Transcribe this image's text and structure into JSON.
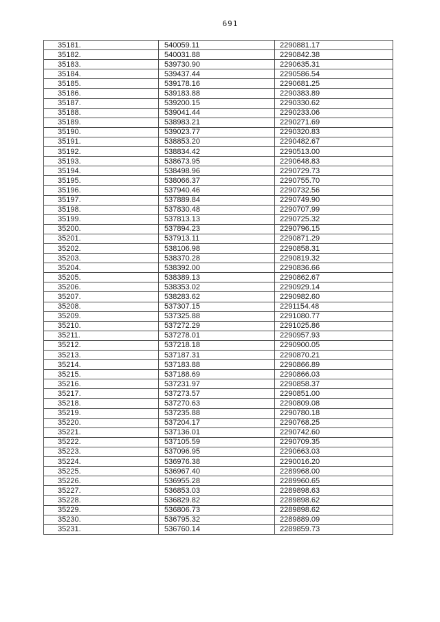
{
  "page": {
    "number": "691"
  },
  "table": {
    "rows": [
      [
        "35181.",
        "540059.11",
        "2290881.17"
      ],
      [
        "35182.",
        "540031.88",
        "2290842.38"
      ],
      [
        "35183.",
        "539730.90",
        "2290635.31"
      ],
      [
        "35184.",
        "539437.44",
        "2290586.54"
      ],
      [
        "35185.",
        "539178.16",
        "2290681.25"
      ],
      [
        "35186.",
        "539183.88",
        "2290383.89"
      ],
      [
        "35187.",
        "539200.15",
        "2290330.62"
      ],
      [
        "35188.",
        "539041.44",
        "2290233.06"
      ],
      [
        "35189.",
        "538983.21",
        "2290271.69"
      ],
      [
        "35190.",
        "539023.77",
        "2290320.83"
      ],
      [
        "35191.",
        "538853.20",
        "2290482.67"
      ],
      [
        "35192.",
        "538834.42",
        "2290513.00"
      ],
      [
        "35193.",
        "538673.95",
        "2290648.83"
      ],
      [
        "35194.",
        "538498.96",
        "2290729.73"
      ],
      [
        "35195.",
        "538066.37",
        "2290755.70"
      ],
      [
        "35196.",
        "537940.46",
        "2290732.56"
      ],
      [
        "35197.",
        "537889.84",
        "2290749.90"
      ],
      [
        "35198.",
        "537830.48",
        "2290707.99"
      ],
      [
        "35199.",
        "537813.13",
        "2290725.32"
      ],
      [
        "35200.",
        "537894.23",
        "2290796.15"
      ],
      [
        "35201.",
        "537913.11",
        "2290871.29"
      ],
      [
        "35202.",
        "538106.98",
        "2290858.31"
      ],
      [
        "35203.",
        "538370.28",
        "2290819.32"
      ],
      [
        "35204.",
        "538392.00",
        "2290836.66"
      ],
      [
        "35205.",
        "538389.13",
        "2290862.67"
      ],
      [
        "35206.",
        "538353.02",
        "2290929.14"
      ],
      [
        "35207.",
        "538283.62",
        "2290982.60"
      ],
      [
        "35208.",
        "537307.15",
        "2291154.48"
      ],
      [
        "35209.",
        "537325.88",
        "2291080.77"
      ],
      [
        "35210.",
        "537272.29",
        "2291025.86"
      ],
      [
        "35211.",
        "537278.01",
        "2290957.93"
      ],
      [
        "35212.",
        "537218.18",
        "2290900.05"
      ],
      [
        "35213.",
        "537187.31",
        "2290870.21"
      ],
      [
        "35214.",
        "537183.88",
        "2290866.89"
      ],
      [
        "35215.",
        "537188.69",
        "2290866.03"
      ],
      [
        "35216.",
        "537231.97",
        "2290858.37"
      ],
      [
        "35217.",
        "537273.57",
        "2290851.00"
      ],
      [
        "35218.",
        "537270.63",
        "2290809.08"
      ],
      [
        "35219.",
        "537235.88",
        "2290780.18"
      ],
      [
        "35220.",
        "537204.17",
        "2290768.25"
      ],
      [
        "35221.",
        "537136.01",
        "2290742.60"
      ],
      [
        "35222.",
        "537105.59",
        "2290709.35"
      ],
      [
        "35223.",
        "537096.95",
        "2290663.03"
      ],
      [
        "35224.",
        "536976.38",
        "2290016.20"
      ],
      [
        "35225.",
        "536967.40",
        "2289968.00"
      ],
      [
        "35226.",
        "536955.28",
        "2289960.65"
      ],
      [
        "35227.",
        "536853.03",
        "2289898.63"
      ],
      [
        "35228.",
        "536829.82",
        "2289898.62"
      ],
      [
        "35229.",
        "536806.73",
        "2289898.62"
      ],
      [
        "35230.",
        "536795.32",
        "2289889.09"
      ],
      [
        "35231.",
        "536760.14",
        "2289859.73"
      ]
    ]
  }
}
